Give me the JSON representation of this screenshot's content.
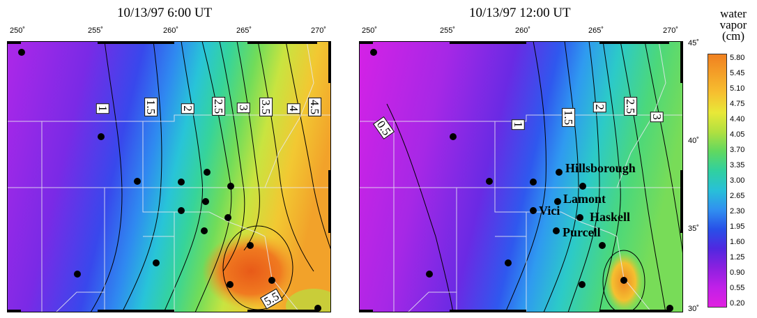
{
  "panels": [
    {
      "title": "10/13/97 6:00 UT",
      "contour_labels": [
        "1",
        "1.5",
        "2",
        "2.5",
        "3",
        "3.5",
        "4",
        "4.5",
        "5.5"
      ],
      "station_count": 16
    },
    {
      "title": "10/13/97 12:00 UT",
      "contour_labels": [
        "0.5",
        "1",
        "1.5",
        "2",
        "2.5",
        "3"
      ],
      "station_count": 15,
      "site_labels": [
        "Hillsborough",
        "Lamont",
        "Vici",
        "Haskell",
        "Purcell"
      ]
    }
  ],
  "longitude_labels": [
    "250˚",
    "255˚",
    "260˚",
    "265˚",
    "270˚"
  ],
  "latitude_labels": [
    "45˚",
    "40˚",
    "35˚",
    "30˚"
  ],
  "colorbar": {
    "title_lines": [
      "water",
      "vapor",
      "(cm)"
    ],
    "ticks": [
      "5.80",
      "5.45",
      "5.10",
      "4.75",
      "4.40",
      "4.05",
      "3.70",
      "3.35",
      "3.00",
      "2.65",
      "2.30",
      "1.95",
      "1.60",
      "1.25",
      "0.90",
      "0.55",
      "0.20"
    ],
    "colors": [
      "#f08020",
      "#f4a028",
      "#f6c030",
      "#e8e838",
      "#b0e040",
      "#60d860",
      "#30d0a0",
      "#28c0d8",
      "#3090f0",
      "#2850e8",
      "#5028e0",
      "#8c20e0",
      "#c020e8",
      "#e020e0"
    ]
  }
}
